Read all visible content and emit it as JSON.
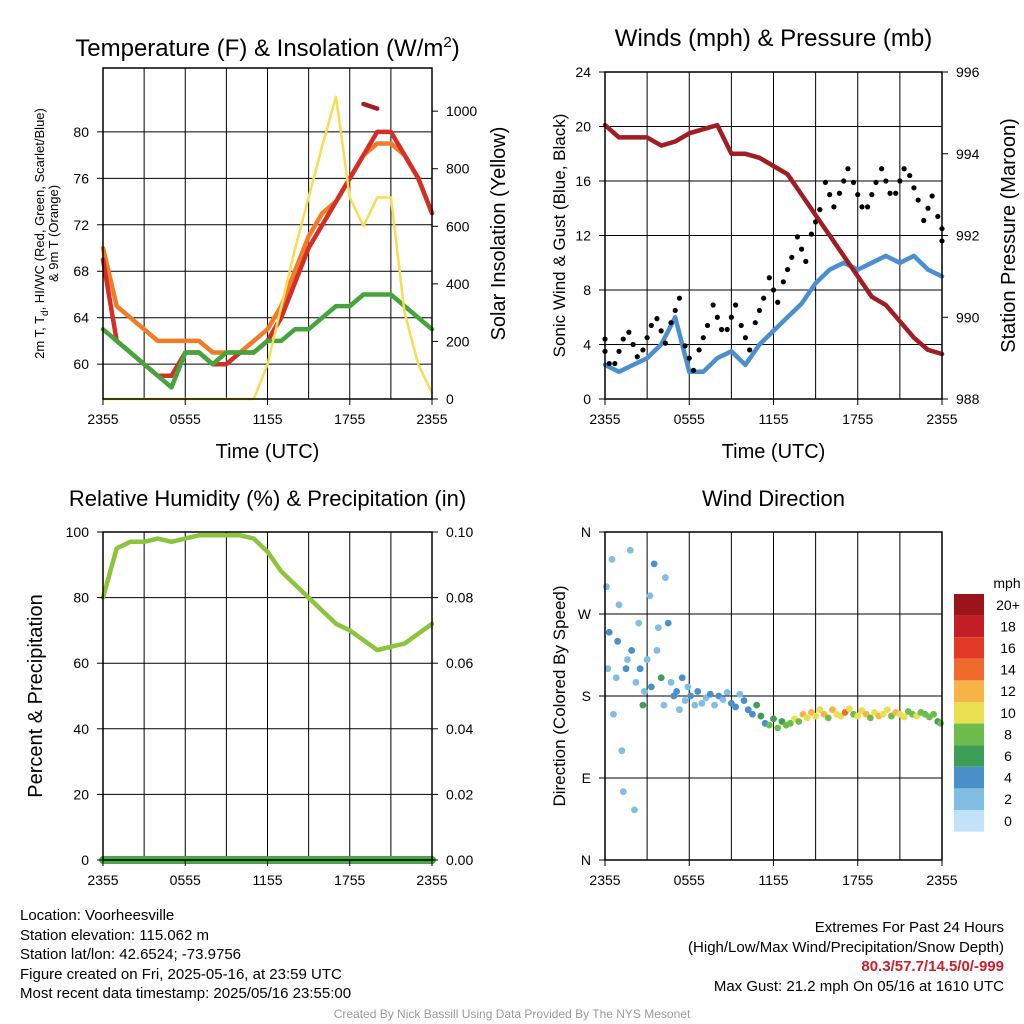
{
  "chart_data": [
    {
      "type": "line",
      "title": "Temperature (F) & Insolation (W/m²)",
      "xlabel": "Time (UTC)",
      "ylabel": "2m T, Td, HI/WC (Red, Green, Scarlet/Blue) & 9m T (Orange)",
      "ylabel_line1": "2m T, T",
      "ylabel_sub": "d",
      "ylabel_line1b": ", HI/WC (Red, Green, Scarlet/Blue)",
      "ylabel_line2": "& 9m T (Orange)",
      "y2label": "Solar Insolation (Yellow)",
      "xticks": [
        "2355",
        "0555",
        "1155",
        "1755",
        "2355"
      ],
      "ylim": [
        57,
        85.5
      ],
      "yticks": [
        60,
        64,
        68,
        72,
        76,
        80
      ],
      "y2lim": [
        0,
        1150
      ],
      "y2ticks": [
        0,
        200,
        400,
        600,
        800,
        1000
      ],
      "grid": true,
      "x_hours": [
        0,
        1,
        2,
        3,
        4,
        5,
        6,
        7,
        8,
        9,
        10,
        11,
        12,
        13,
        14,
        15,
        16,
        17,
        18,
        19,
        20,
        21,
        22,
        23,
        24
      ],
      "series": [
        {
          "color": "#f07c28",
          "values": [
            70,
            65,
            64,
            63,
            62,
            62,
            62,
            62,
            61,
            61,
            61,
            62,
            63,
            65,
            68,
            71,
            73,
            74,
            76,
            78,
            79,
            79,
            78,
            76,
            73
          ]
        },
        {
          "color": "#d32f27",
          "values": [
            69,
            62,
            61,
            60,
            59,
            59,
            61,
            61,
            60,
            60,
            61,
            61,
            62,
            64,
            67,
            70,
            72,
            74,
            76,
            78,
            80,
            80,
            78,
            76,
            73
          ]
        },
        {
          "color": "#a01d22",
          "values": [
            null,
            null,
            null,
            null,
            null,
            null,
            null,
            null,
            null,
            null,
            null,
            null,
            null,
            null,
            null,
            null,
            null,
            null,
            null,
            82.4,
            82.0,
            null,
            null,
            null,
            null
          ]
        },
        {
          "color": "#44a53c",
          "values": [
            63,
            62,
            61,
            60,
            59,
            58,
            61,
            61,
            60,
            61,
            61,
            61,
            62,
            62,
            63,
            63,
            64,
            65,
            65,
            66,
            66,
            66,
            65,
            64,
            63
          ]
        },
        {
          "color": "#f8dc52",
          "axis": "right",
          "values": [
            0,
            0,
            0,
            0,
            0,
            0,
            0,
            0,
            0,
            0,
            0,
            0,
            120,
            320,
            520,
            700,
            880,
            1050,
            700,
            600,
            700,
            700,
            300,
            120,
            20
          ]
        }
      ]
    },
    {
      "type": "line",
      "title": "Winds (mph) & Pressure (mb)",
      "xlabel": "Time (UTC)",
      "ylabel": "Sonic Wind & Gust (Blue, Black)",
      "y2label": "Station Pressure (Maroon)",
      "xticks": [
        "2355",
        "0555",
        "1155",
        "1755",
        "2355"
      ],
      "ylim": [
        0,
        24
      ],
      "yticks": [
        0,
        4,
        8,
        12,
        16,
        20,
        24
      ],
      "y2lim": [
        988,
        996
      ],
      "y2ticks": [
        988,
        990,
        992,
        994,
        996
      ],
      "grid": true,
      "x_hours": [
        0,
        1,
        2,
        3,
        4,
        5,
        6,
        7,
        8,
        9,
        10,
        11,
        12,
        13,
        14,
        15,
        16,
        17,
        18,
        19,
        20,
        21,
        22,
        23,
        24
      ],
      "series": [
        {
          "color": "#4a90d0",
          "values": [
            2.5,
            2,
            2.5,
            3,
            4,
            6,
            2,
            2,
            3,
            3.5,
            2.5,
            4,
            5,
            6,
            7,
            8.5,
            9.5,
            10,
            9.5,
            10,
            10.5,
            10,
            10.5,
            9.5,
            9
          ]
        },
        {
          "color": "#000000",
          "type": "scatter",
          "values": [
            3.5,
            3.5,
            4,
            4.5,
            5,
            6.5,
            3,
            4.5,
            6,
            6,
            4.5,
            6.5,
            8,
            9.5,
            11,
            13,
            15,
            16,
            15,
            15,
            16,
            16,
            15.5,
            14,
            12.5
          ]
        },
        {
          "color": "#a01d22",
          "axis": "right",
          "values": [
            994.7,
            994.4,
            994.4,
            994.4,
            994.2,
            994.3,
            994.5,
            994.6,
            994.7,
            994.0,
            994.0,
            993.9,
            993.7,
            993.5,
            993.0,
            992.5,
            992.0,
            991.5,
            991.0,
            990.5,
            990.3,
            989.9,
            989.5,
            989.2,
            989.1
          ]
        }
      ]
    },
    {
      "type": "line",
      "title": "Relative Humidity (%) & Precipitation (in)",
      "ylabel": "Percent & Precipitation",
      "xticks": [
        "2355",
        "0555",
        "1155",
        "1755",
        "2355"
      ],
      "ylim": [
        0,
        100
      ],
      "yticks": [
        0,
        20,
        40,
        60,
        80,
        100
      ],
      "y2lim": [
        0,
        0.1
      ],
      "y2ticks": [
        "0.00",
        "0.02",
        "0.04",
        "0.06",
        "0.08",
        "0.10"
      ],
      "grid": true,
      "x_hours": [
        0,
        1,
        2,
        3,
        4,
        5,
        6,
        7,
        8,
        9,
        10,
        11,
        12,
        13,
        14,
        15,
        16,
        17,
        18,
        19,
        20,
        21,
        22,
        23,
        24
      ],
      "series": [
        {
          "color": "#8cc43c",
          "values": [
            80,
            95,
            97,
            97,
            98,
            97,
            98,
            99,
            99,
            99,
            99,
            98,
            94,
            88,
            84,
            80,
            76,
            72,
            70,
            67,
            64,
            65,
            66,
            69,
            72
          ]
        },
        {
          "color": "#4aa648",
          "axis": "right",
          "values": [
            0,
            0,
            0,
            0,
            0,
            0,
            0,
            0,
            0,
            0,
            0,
            0,
            0,
            0,
            0,
            0,
            0,
            0,
            0,
            0,
            0,
            0,
            0,
            0,
            0
          ]
        }
      ]
    },
    {
      "type": "scatter",
      "title": "Wind Direction",
      "ylabel": "Direction (Colored By Speed)",
      "xticks": [
        "2355",
        "0555",
        "1155",
        "1755",
        "2355"
      ],
      "yticks": [
        "N",
        "E",
        "S",
        "W",
        "N"
      ],
      "ylim": [
        0,
        360
      ],
      "grid": true,
      "legend": {
        "title": "mph",
        "labels": [
          "0",
          "2",
          "4",
          "6",
          "8",
          "10",
          "12",
          "14",
          "16",
          "18",
          "20+"
        ],
        "colors": [
          "#c2e3f7",
          "#82bde4",
          "#4a90c9",
          "#3e9e58",
          "#6dbd4c",
          "#e8e050",
          "#f7b248",
          "#f06a2c",
          "#e23a26",
          "#c21e25",
          "#9a1419"
        ]
      },
      "points_hour_dir_speed": [
        [
          0.1,
          300,
          1
        ],
        [
          0.2,
          210,
          2
        ],
        [
          0.3,
          250,
          4
        ],
        [
          0.5,
          330,
          1
        ],
        [
          0.6,
          160,
          2
        ],
        [
          0.8,
          200,
          1
        ],
        [
          0.9,
          240,
          3
        ],
        [
          1.0,
          280,
          2
        ],
        [
          1.2,
          120,
          2
        ],
        [
          1.3,
          75,
          1
        ],
        [
          1.5,
          210,
          4
        ],
        [
          1.6,
          220,
          2
        ],
        [
          1.8,
          340,
          1
        ],
        [
          1.9,
          230,
          3
        ],
        [
          2.1,
          55,
          2
        ],
        [
          2.2,
          195,
          2
        ],
        [
          2.4,
          260,
          1
        ],
        [
          2.5,
          210,
          4
        ],
        [
          2.7,
          170,
          6
        ],
        [
          2.8,
          185,
          1
        ],
        [
          3.0,
          220,
          2
        ],
        [
          3.2,
          290,
          2
        ],
        [
          3.3,
          190,
          3
        ],
        [
          3.5,
          325,
          4
        ],
        [
          3.7,
          230,
          1
        ],
        [
          3.8,
          255,
          2
        ],
        [
          4.0,
          200,
          6
        ],
        [
          4.2,
          170,
          2
        ],
        [
          4.3,
          310,
          1
        ],
        [
          4.5,
          260,
          3
        ],
        [
          4.7,
          195,
          2
        ],
        [
          4.9,
          180,
          3
        ],
        [
          5.1,
          185,
          4
        ],
        [
          5.3,
          165,
          2
        ],
        [
          5.5,
          200,
          3
        ],
        [
          5.7,
          175,
          1
        ],
        [
          5.9,
          190,
          2
        ],
        [
          6.1,
          180,
          3
        ],
        [
          6.4,
          170,
          2
        ],
        [
          6.6,
          185,
          4
        ],
        [
          6.9,
          172,
          2
        ],
        [
          7.2,
          178,
          1
        ],
        [
          7.5,
          182,
          3
        ],
        [
          7.8,
          170,
          2
        ],
        [
          8.1,
          180,
          4
        ],
        [
          8.4,
          176,
          2
        ],
        [
          8.7,
          184,
          1
        ],
        [
          9.0,
          172,
          3
        ],
        [
          9.3,
          168,
          4
        ],
        [
          9.6,
          182,
          2
        ],
        [
          9.9,
          175,
          4
        ],
        [
          10.2,
          165,
          3
        ],
        [
          10.5,
          160,
          4
        ],
        [
          10.8,
          170,
          5
        ],
        [
          11.1,
          158,
          6
        ],
        [
          11.4,
          150,
          4
        ],
        [
          11.7,
          148,
          7
        ],
        [
          12.0,
          155,
          6
        ],
        [
          12.3,
          145,
          8
        ],
        [
          12.6,
          152,
          6
        ],
        [
          12.9,
          148,
          7
        ],
        [
          13.2,
          150,
          8
        ],
        [
          13.5,
          155,
          10
        ],
        [
          13.8,
          152,
          8
        ],
        [
          14.1,
          160,
          11
        ],
        [
          14.4,
          156,
          9
        ],
        [
          14.7,
          162,
          12
        ],
        [
          15.0,
          158,
          10
        ],
        [
          15.3,
          165,
          9
        ],
        [
          15.6,
          160,
          11
        ],
        [
          15.9,
          156,
          8
        ],
        [
          16.2,
          165,
          12
        ],
        [
          16.5,
          160,
          9
        ],
        [
          16.8,
          158,
          10
        ],
        [
          17.1,
          162,
          14
        ],
        [
          17.4,
          166,
          10
        ],
        [
          17.7,
          160,
          8
        ],
        [
          18.0,
          158,
          10
        ],
        [
          18.3,
          164,
          9
        ],
        [
          18.6,
          160,
          11
        ],
        [
          18.9,
          156,
          8
        ],
        [
          19.2,
          162,
          10
        ],
        [
          19.5,
          158,
          12
        ],
        [
          19.8,
          160,
          9
        ],
        [
          20.1,
          165,
          10
        ],
        [
          20.4,
          158,
          8
        ],
        [
          20.7,
          162,
          11
        ],
        [
          21.0,
          160,
          9
        ],
        [
          21.3,
          157,
          10
        ],
        [
          21.6,
          163,
          8
        ],
        [
          21.9,
          160,
          7
        ],
        [
          22.2,
          158,
          9
        ],
        [
          22.5,
          162,
          8
        ],
        [
          22.8,
          160,
          7
        ],
        [
          23.1,
          157,
          8
        ],
        [
          23.4,
          160,
          7
        ],
        [
          23.7,
          152,
          6
        ],
        [
          23.9,
          150,
          8
        ]
      ]
    }
  ],
  "info": {
    "location": "Location: Voorheesville",
    "elevation": "Station elevation: 115.062 m",
    "latlon": "Station lat/lon: 42.6524; -73.9756",
    "created": "Figure created on Fri, 2025-05-16, at 23:59 UTC",
    "recent": "Most recent data timestamp: 2025/05/16 23:55:00"
  },
  "extremes": {
    "heading": "Extremes For Past 24 Hours",
    "subheading": "(High/Low/Max Wind/Precipitation/Snow Depth)",
    "values": "80.3/57.7/14.5/0/-999",
    "gust": "Max Gust: 21.2 mph On 05/16 at 1610 UTC"
  },
  "credit": "Created By Nick Bassill Using Data Provided By The NYS Mesonet"
}
